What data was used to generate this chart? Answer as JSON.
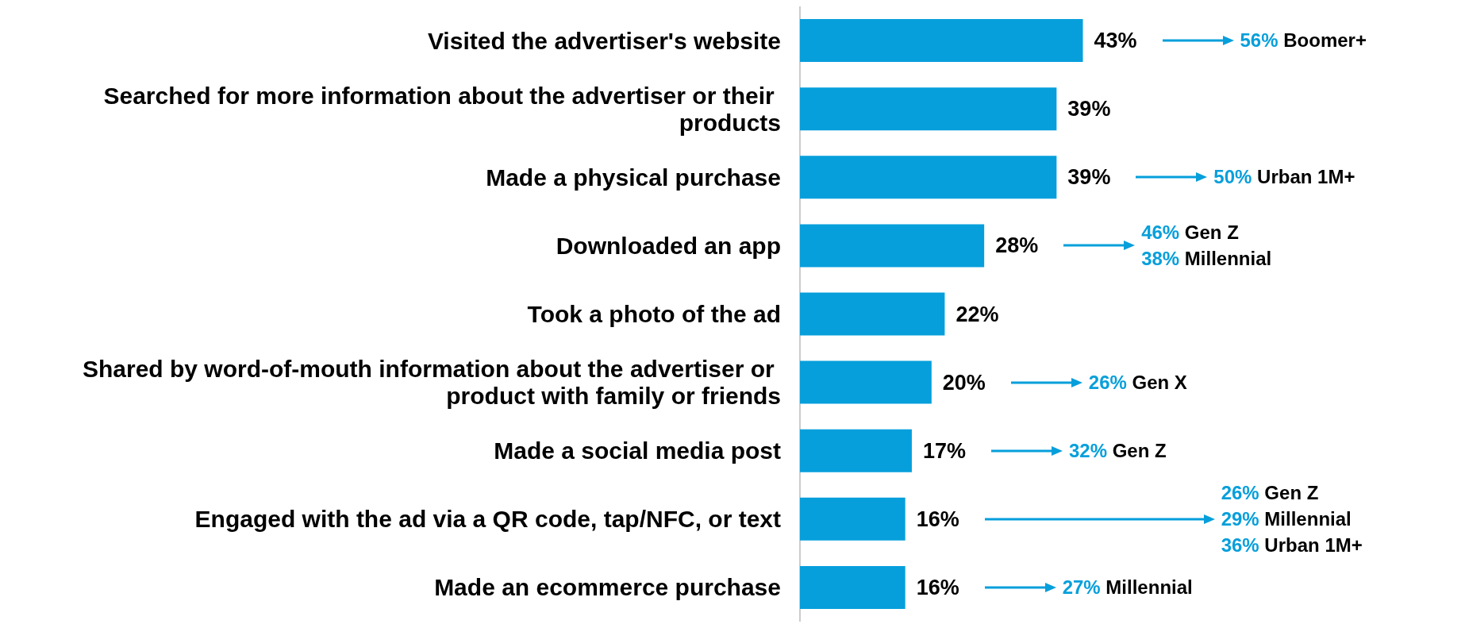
{
  "chart_data": {
    "type": "bar",
    "orientation": "horizontal",
    "categories": [
      "Visited the advertiser's website",
      "Searched for more information about the advertiser or their products",
      "Made a physical purchase",
      "Downloaded an app",
      "Took a photo of the ad",
      "Shared by word-of-mouth information about the advertiser or product with family or friends",
      "Made a social media post",
      "Engaged with the ad via a QR code, tap/NFC, or text",
      "Made an ecommerce purchase"
    ],
    "values": [
      43,
      39,
      39,
      28,
      22,
      20,
      17,
      16,
      16
    ],
    "value_labels": [
      "43%",
      "39%",
      "39%",
      "28%",
      "22%",
      "20%",
      "17%",
      "16%",
      "16%"
    ],
    "color": "#069fdb",
    "annotations": [
      "56% Boomer+",
      "50% Urban 1M+",
      "46% Gen Z",
      "38% Millennial",
      "26% Gen X",
      "32% Gen Z",
      "26% Gen Z",
      "29% Millennial",
      "36% Urban 1M+",
      "27% Millennial"
    ]
  }
}
